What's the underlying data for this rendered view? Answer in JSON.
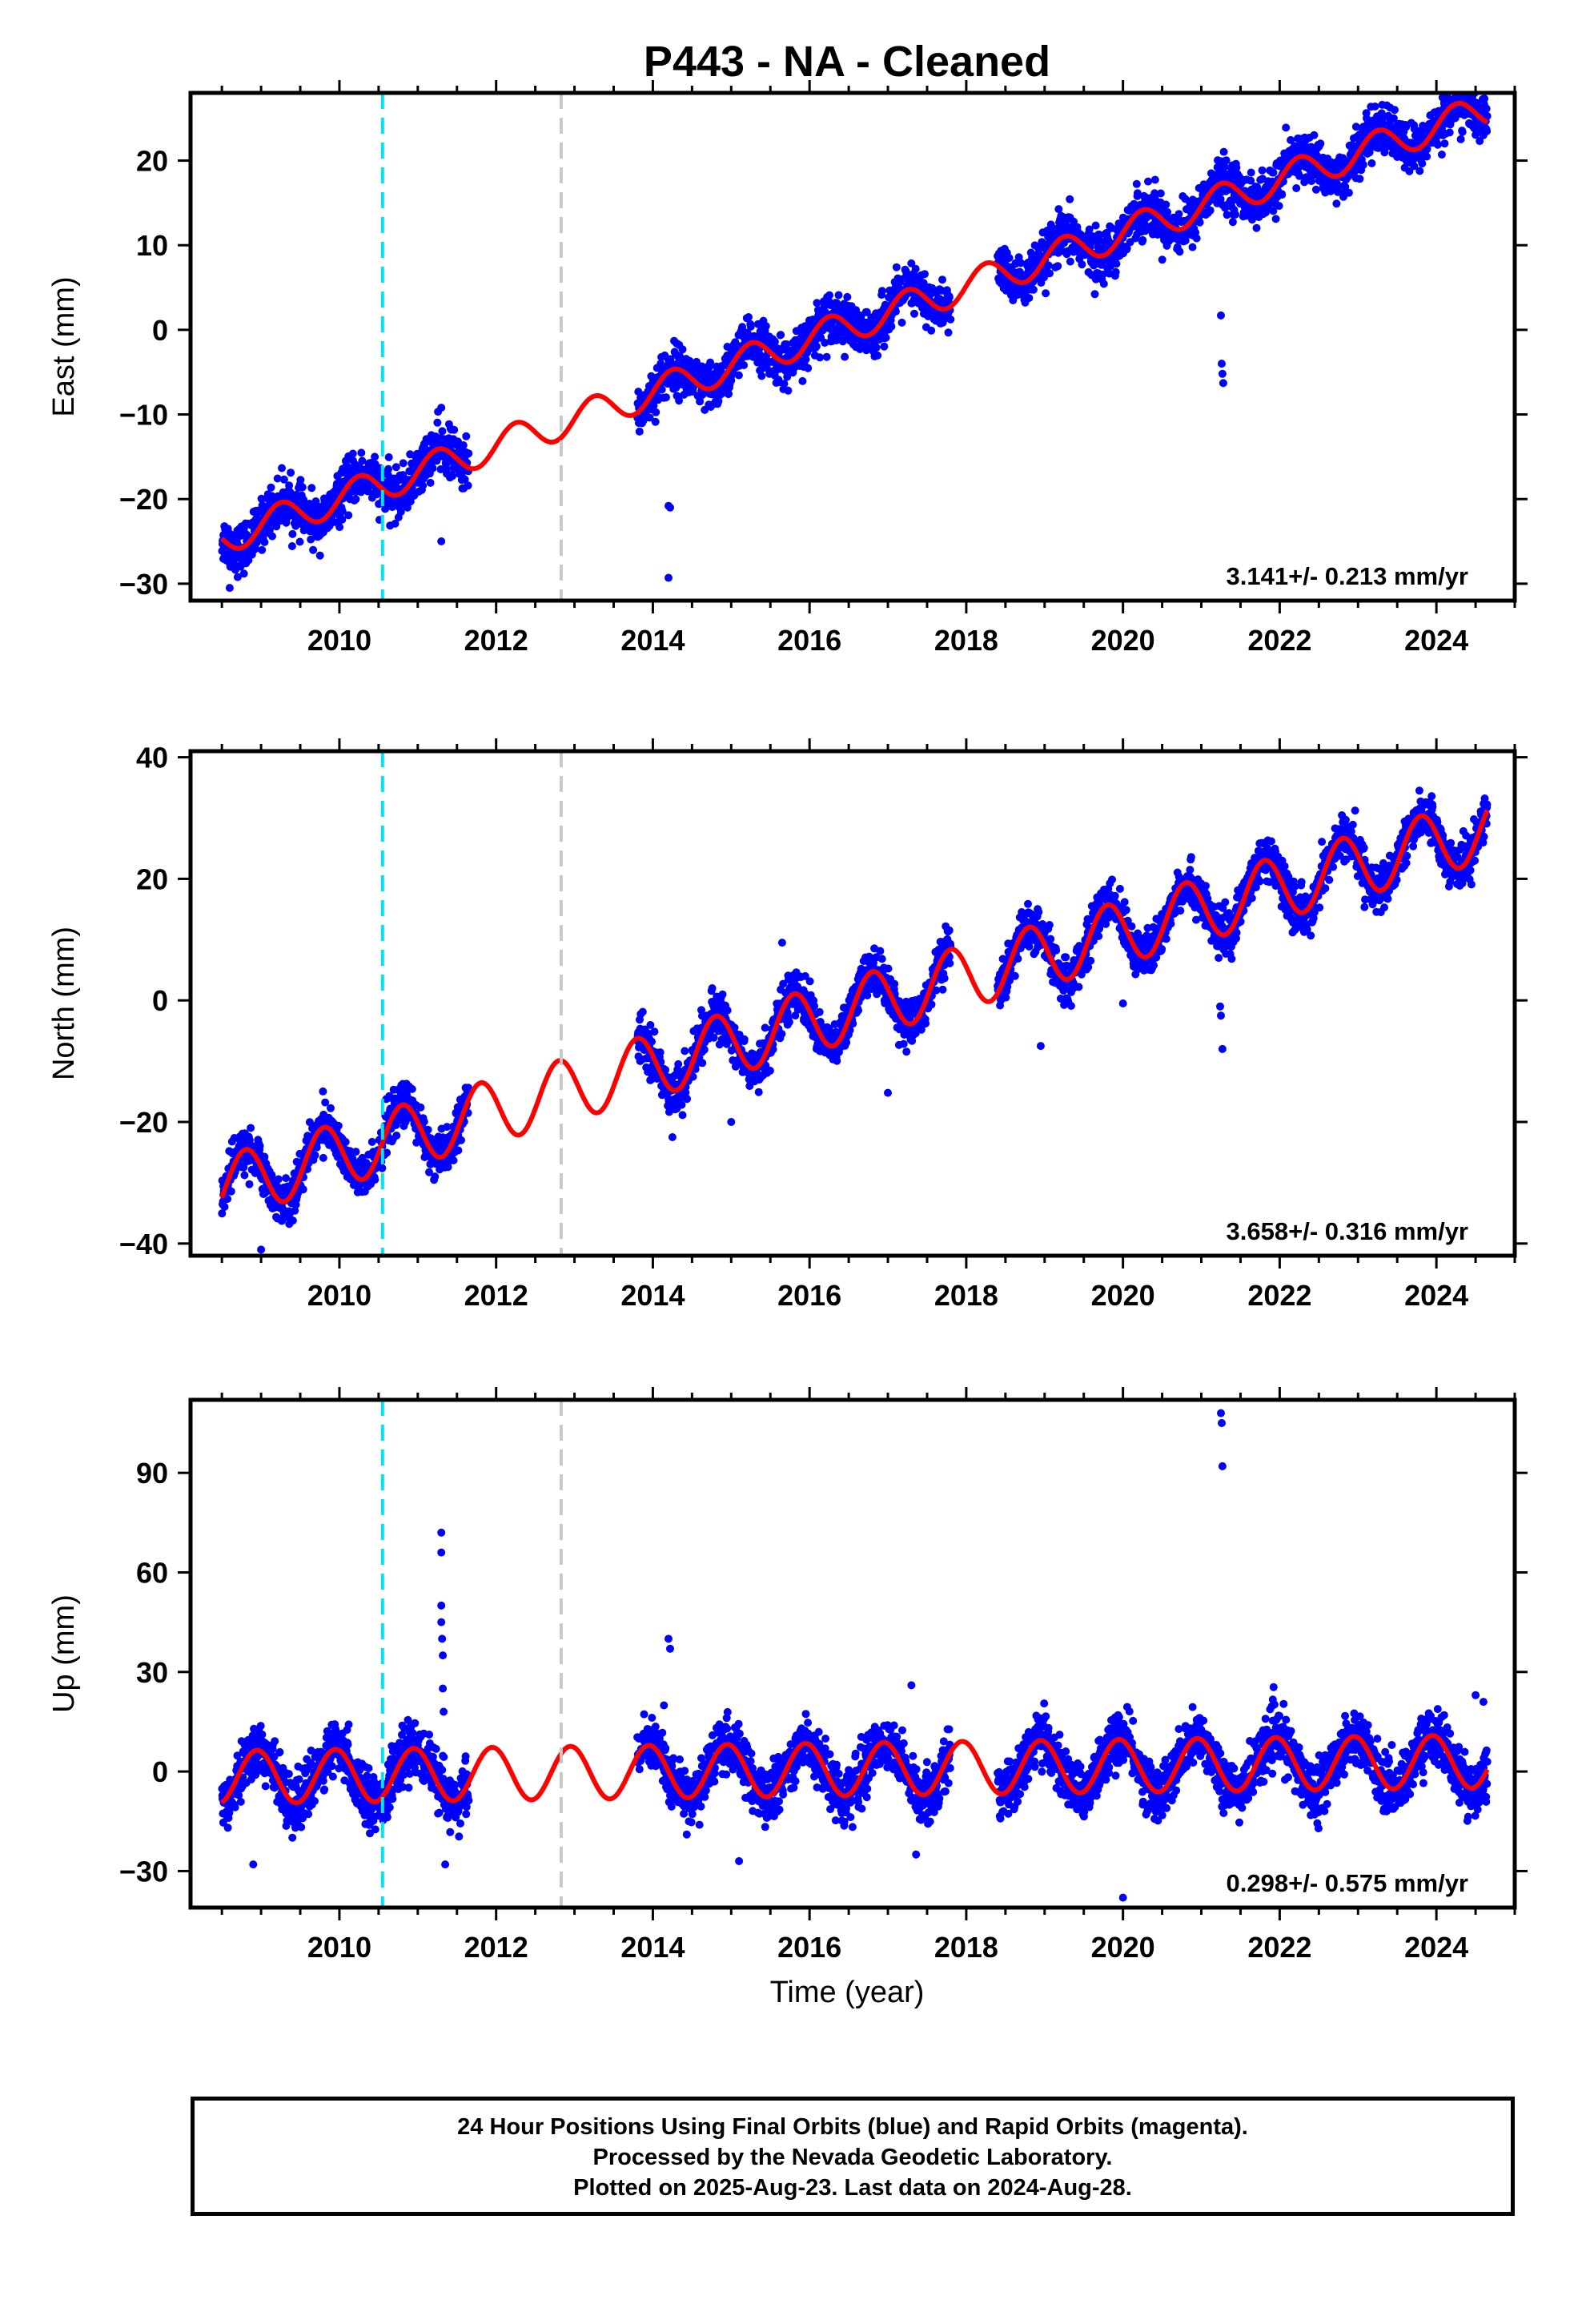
{
  "title": "P443  - NA - Cleaned",
  "xlabel": "Time (year)",
  "footer": {
    "line1": "24 Hour Positions Using Final Orbits (blue) and Rapid Orbits (magenta).",
    "line2": "Processed by the Nevada Geodetic Laboratory.",
    "line3": "Plotted on 2025-Aug-23. Last data on 2024-Aug-28."
  },
  "colors": {
    "data": "#0000ff",
    "model": "#ff0000",
    "equipment_change": "#00e5ee",
    "other_event": "#c8c8c8"
  },
  "chart_data": [
    {
      "type": "scatter",
      "component": "east",
      "ylabel": "East (mm)",
      "xlim": [
        2008.1,
        2025.0
      ],
      "ylim": [
        -32,
        28
      ],
      "xticks": [
        2010,
        2012,
        2014,
        2016,
        2018,
        2020,
        2022,
        2024
      ],
      "yticks": [
        -30,
        -20,
        -10,
        0,
        10,
        20
      ],
      "rate_text": "3.141+/- 0.213 mm/yr",
      "events": [
        {
          "year": 2010.55,
          "kind": "equipment_change"
        },
        {
          "year": 2012.83,
          "kind": "other_event"
        }
      ],
      "model": {
        "slope": 3.141,
        "ref_year": 2016.0,
        "offset": -1.1,
        "amp": 1.9,
        "phase_year": 0.0
      },
      "data_segments": [
        [
          2008.5,
          2011.65
        ],
        [
          2013.8,
          2017.8
        ],
        [
          2018.4,
          2024.65
        ]
      ],
      "scatter_sigma": 1.4,
      "outliers": [
        {
          "x": 2014.2,
          "y": -29.3
        },
        {
          "x": 2014.2,
          "y": -20.8
        },
        {
          "x": 2014.22,
          "y": -21.0
        },
        {
          "x": 2021.25,
          "y": 1.7
        },
        {
          "x": 2021.26,
          "y": -4.0
        },
        {
          "x": 2021.27,
          "y": -5.2
        },
        {
          "x": 2021.28,
          "y": -6.3
        },
        {
          "x": 2011.3,
          "y": -25.0
        },
        {
          "x": 2008.6,
          "y": -30.5
        },
        {
          "x": 2011.3,
          "y": -9.2
        }
      ]
    },
    {
      "type": "scatter",
      "component": "north",
      "ylabel": "North (mm)",
      "xlim": [
        2008.1,
        2025.0
      ],
      "ylim": [
        -42,
        41
      ],
      "xticks": [
        2010,
        2012,
        2014,
        2016,
        2018,
        2020,
        2022,
        2024
      ],
      "yticks": [
        -40,
        -20,
        0,
        20,
        40
      ],
      "rate_text": "3.658+/- 0.316 mm/yr",
      "events": [
        {
          "year": 2010.55,
          "kind": "equipment_change"
        },
        {
          "year": 2012.83,
          "kind": "other_event"
        }
      ],
      "model": {
        "slope": 3.658,
        "ref_year": 2016.0,
        "offset": -3.4,
        "amp": 5.2,
        "phase_year": 0.55
      },
      "data_segments": [
        [
          2008.5,
          2011.65
        ],
        [
          2013.8,
          2017.8
        ],
        [
          2018.4,
          2024.65
        ]
      ],
      "scatter_sigma": 1.8,
      "outliers": [
        {
          "x": 2009.0,
          "y": -41.0
        },
        {
          "x": 2014.25,
          "y": -22.5
        },
        {
          "x": 2015.0,
          "y": -20.0
        },
        {
          "x": 2015.65,
          "y": 9.5
        },
        {
          "x": 2017.0,
          "y": -15.2
        },
        {
          "x": 2018.95,
          "y": -7.5
        },
        {
          "x": 2020.0,
          "y": -0.5
        },
        {
          "x": 2021.22,
          "y": 7.0
        },
        {
          "x": 2021.24,
          "y": -1.0
        },
        {
          "x": 2021.25,
          "y": -2.5
        },
        {
          "x": 2021.27,
          "y": -8.0
        }
      ]
    },
    {
      "type": "scatter",
      "component": "up",
      "ylabel": "Up (mm)",
      "xlim": [
        2008.1,
        2025.0
      ],
      "ylim": [
        -41,
        112
      ],
      "xticks": [
        2010,
        2012,
        2014,
        2016,
        2018,
        2020,
        2022,
        2024
      ],
      "yticks": [
        -30,
        0,
        30,
        60,
        90
      ],
      "rate_text": "0.298+/- 0.575 mm/yr",
      "events": [
        {
          "year": 2010.55,
          "kind": "equipment_change"
        },
        {
          "year": 2012.83,
          "kind": "other_event"
        }
      ],
      "model": {
        "slope": 0.298,
        "ref_year": 2016.0,
        "offset": 0.5,
        "amp": 8.0,
        "phase_year": 0.7
      },
      "data_segments": [
        [
          2008.5,
          2011.65
        ],
        [
          2013.8,
          2017.8
        ],
        [
          2018.4,
          2024.65
        ]
      ],
      "scatter_sigma": 4.0,
      "outliers": [
        {
          "x": 2011.3,
          "y": 72.0
        },
        {
          "x": 2011.3,
          "y": 66.0
        },
        {
          "x": 2011.3,
          "y": 50.0
        },
        {
          "x": 2011.3,
          "y": 45.0
        },
        {
          "x": 2011.31,
          "y": 40.0
        },
        {
          "x": 2011.32,
          "y": 35.0
        },
        {
          "x": 2011.32,
          "y": 25.0
        },
        {
          "x": 2011.33,
          "y": 18.0
        },
        {
          "x": 2011.35,
          "y": -28.0
        },
        {
          "x": 2014.2,
          "y": 40.0
        },
        {
          "x": 2014.22,
          "y": 37.0
        },
        {
          "x": 2017.3,
          "y": 26.0
        },
        {
          "x": 2021.25,
          "y": 108.0
        },
        {
          "x": 2021.26,
          "y": 105.0
        },
        {
          "x": 2021.27,
          "y": 92.0
        },
        {
          "x": 2020.0,
          "y": -38.0
        },
        {
          "x": 2008.9,
          "y": -28.0
        },
        {
          "x": 2015.1,
          "y": -27.0
        },
        {
          "x": 2024.5,
          "y": 23.0
        },
        {
          "x": 2024.6,
          "y": 21.0
        }
      ]
    }
  ]
}
